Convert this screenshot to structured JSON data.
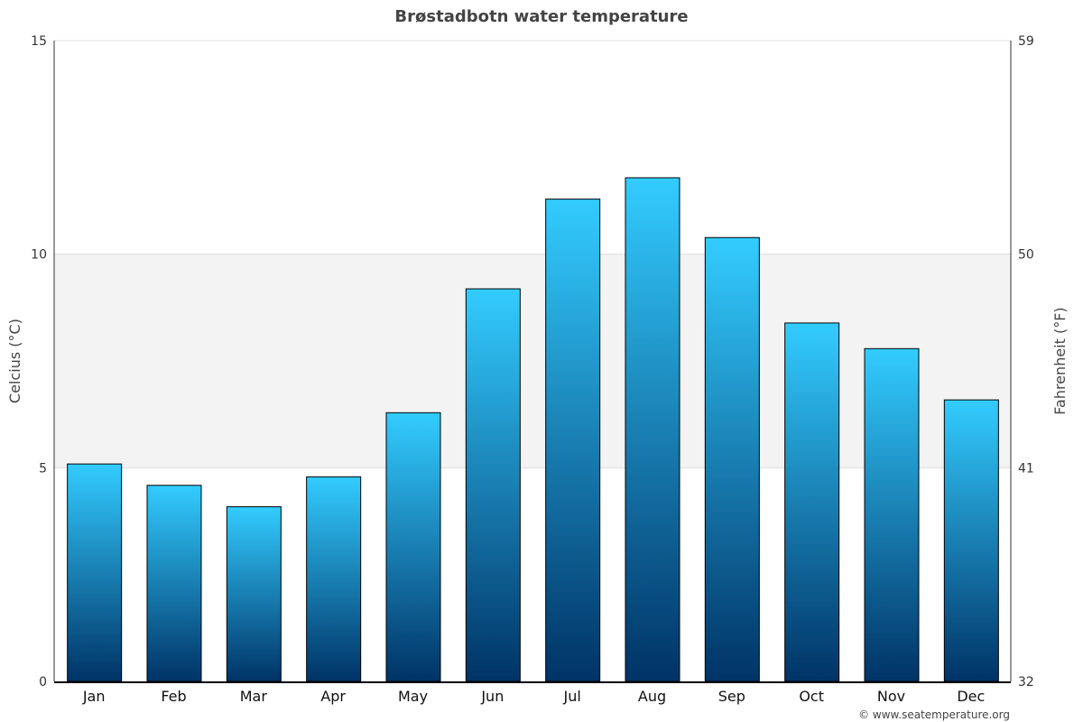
{
  "chart_data": {
    "type": "bar",
    "title": "Brøstadbotn water temperature",
    "categories": [
      "Jan",
      "Feb",
      "Mar",
      "Apr",
      "May",
      "Jun",
      "Jul",
      "Aug",
      "Sep",
      "Oct",
      "Nov",
      "Dec"
    ],
    "values": [
      5.1,
      4.6,
      4.1,
      4.8,
      6.3,
      9.2,
      11.3,
      11.8,
      10.4,
      8.4,
      7.8,
      6.6
    ],
    "ylabel": "Celcius (°C)",
    "ylabel_right": "Fahrenheit (°F)",
    "ylim": [
      0,
      15
    ],
    "yticks": [
      "0",
      "5",
      "10",
      "15"
    ],
    "yticks_right": [
      "32",
      "41",
      "50",
      "59"
    ],
    "grid": true,
    "shaded_band": [
      5,
      10
    ],
    "colors": {
      "bar_top": "#33ccff",
      "bar_bottom": "#003366",
      "band": "#f3f3f3"
    }
  },
  "credit": "© www.seatemperature.org"
}
